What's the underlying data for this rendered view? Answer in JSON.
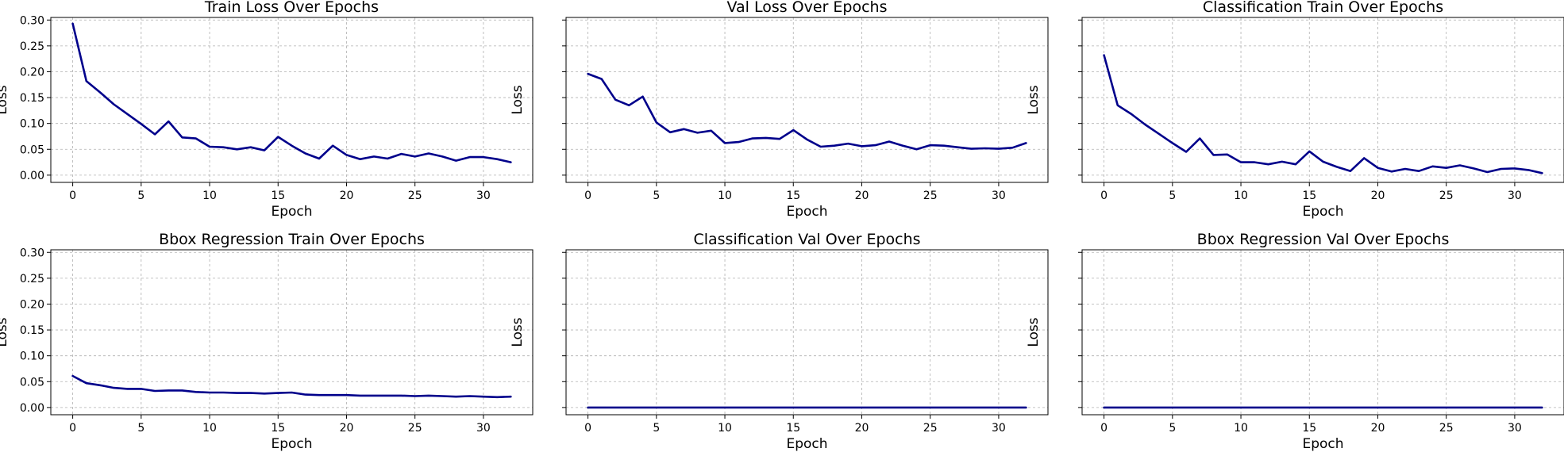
{
  "chart_data": [
    {
      "type": "line",
      "title": "Train Loss Over Epochs",
      "xlabel": "Epoch",
      "ylabel": "Loss",
      "xlim": [
        -1.6,
        33.6
      ],
      "ylim": [
        -0.014,
        0.305
      ],
      "xticks": [
        "0",
        "5",
        "10",
        "15",
        "20",
        "25",
        "30"
      ],
      "yticks": [
        "0.00",
        "0.05",
        "0.10",
        "0.15",
        "0.20",
        "0.25",
        "0.30"
      ],
      "show_ytick_labels": true,
      "grid": true,
      "color": "#00008b",
      "x": [
        0,
        1,
        2,
        3,
        4,
        5,
        6,
        7,
        8,
        9,
        10,
        11,
        12,
        13,
        14,
        15,
        16,
        17,
        18,
        19,
        20,
        21,
        22,
        23,
        24,
        25,
        26,
        27,
        28,
        29,
        30,
        31,
        32
      ],
      "y": [
        0.293,
        0.182,
        0.16,
        0.137,
        0.118,
        0.099,
        0.079,
        0.104,
        0.073,
        0.071,
        0.055,
        0.054,
        0.05,
        0.054,
        0.048,
        0.074,
        0.057,
        0.042,
        0.032,
        0.057,
        0.039,
        0.031,
        0.036,
        0.032,
        0.041,
        0.036,
        0.042,
        0.036,
        0.028,
        0.035,
        0.035,
        0.031,
        0.025
      ]
    },
    {
      "type": "line",
      "title": "Val Loss Over Epochs",
      "xlabel": "Epoch",
      "ylabel": "Loss",
      "xlim": [
        -1.6,
        33.6
      ],
      "ylim": [
        -0.014,
        0.305
      ],
      "xticks": [
        "0",
        "5",
        "10",
        "15",
        "20",
        "25",
        "30"
      ],
      "yticks": [
        "0.00",
        "0.05",
        "0.10",
        "0.15",
        "0.20",
        "0.25",
        "0.30"
      ],
      "show_ytick_labels": false,
      "grid": true,
      "color": "#00008b",
      "x": [
        0,
        1,
        2,
        3,
        4,
        5,
        6,
        7,
        8,
        9,
        10,
        11,
        12,
        13,
        14,
        15,
        16,
        17,
        18,
        19,
        20,
        21,
        22,
        23,
        24,
        25,
        26,
        27,
        28,
        29,
        30,
        31,
        32
      ],
      "y": [
        0.196,
        0.186,
        0.146,
        0.135,
        0.152,
        0.102,
        0.083,
        0.089,
        0.082,
        0.086,
        0.062,
        0.064,
        0.071,
        0.072,
        0.07,
        0.087,
        0.069,
        0.055,
        0.057,
        0.061,
        0.056,
        0.058,
        0.065,
        0.057,
        0.05,
        0.058,
        0.057,
        0.054,
        0.051,
        0.052,
        0.051,
        0.053,
        0.062
      ]
    },
    {
      "type": "line",
      "title": "Classification Train Over Epochs",
      "xlabel": "Epoch",
      "ylabel": "Loss",
      "xlim": [
        -1.6,
        33.6
      ],
      "ylim": [
        -0.014,
        0.305
      ],
      "xticks": [
        "0",
        "5",
        "10",
        "15",
        "20",
        "25",
        "30"
      ],
      "yticks": [
        "0.00",
        "0.05",
        "0.10",
        "0.15",
        "0.20",
        "0.25",
        "0.30"
      ],
      "show_ytick_labels": false,
      "grid": true,
      "color": "#00008b",
      "x": [
        0,
        1,
        2,
        3,
        4,
        5,
        6,
        7,
        8,
        9,
        10,
        11,
        12,
        13,
        14,
        15,
        16,
        17,
        18,
        19,
        20,
        21,
        22,
        23,
        24,
        25,
        26,
        27,
        28,
        29,
        30,
        31,
        32
      ],
      "y": [
        0.232,
        0.135,
        0.118,
        0.098,
        0.08,
        0.062,
        0.045,
        0.071,
        0.039,
        0.04,
        0.025,
        0.025,
        0.021,
        0.026,
        0.021,
        0.046,
        0.026,
        0.016,
        0.008,
        0.033,
        0.014,
        0.007,
        0.012,
        0.008,
        0.017,
        0.014,
        0.019,
        0.013,
        0.006,
        0.012,
        0.013,
        0.01,
        0.004
      ]
    },
    {
      "type": "line",
      "title": "Bbox Regression Train Over Epochs",
      "xlabel": "Epoch",
      "ylabel": "Loss",
      "xlim": [
        -1.6,
        33.6
      ],
      "ylim": [
        -0.014,
        0.305
      ],
      "xticks": [
        "0",
        "5",
        "10",
        "15",
        "20",
        "25",
        "30"
      ],
      "yticks": [
        "0.00",
        "0.05",
        "0.10",
        "0.15",
        "0.20",
        "0.25",
        "0.30"
      ],
      "show_ytick_labels": true,
      "grid": true,
      "color": "#00008b",
      "x": [
        0,
        1,
        2,
        3,
        4,
        5,
        6,
        7,
        8,
        9,
        10,
        11,
        12,
        13,
        14,
        15,
        16,
        17,
        18,
        19,
        20,
        21,
        22,
        23,
        24,
        25,
        26,
        27,
        28,
        29,
        30,
        31,
        32
      ],
      "y": [
        0.061,
        0.047,
        0.043,
        0.038,
        0.036,
        0.036,
        0.032,
        0.033,
        0.033,
        0.03,
        0.029,
        0.029,
        0.028,
        0.028,
        0.027,
        0.028,
        0.029,
        0.025,
        0.024,
        0.024,
        0.024,
        0.023,
        0.023,
        0.023,
        0.023,
        0.022,
        0.023,
        0.022,
        0.021,
        0.022,
        0.021,
        0.02,
        0.021
      ]
    },
    {
      "type": "line",
      "title": "Classification Val Over Epochs",
      "xlabel": "Epoch",
      "ylabel": "Loss",
      "xlim": [
        -1.6,
        33.6
      ],
      "ylim": [
        -0.014,
        0.305
      ],
      "xticks": [
        "0",
        "5",
        "10",
        "15",
        "20",
        "25",
        "30"
      ],
      "yticks": [
        "0.00",
        "0.05",
        "0.10",
        "0.15",
        "0.20",
        "0.25",
        "0.30"
      ],
      "show_ytick_labels": false,
      "grid": true,
      "color": "#00008b",
      "x": [
        0,
        1,
        2,
        3,
        4,
        5,
        6,
        7,
        8,
        9,
        10,
        11,
        12,
        13,
        14,
        15,
        16,
        17,
        18,
        19,
        20,
        21,
        22,
        23,
        24,
        25,
        26,
        27,
        28,
        29,
        30,
        31,
        32
      ],
      "y": [
        0,
        0,
        0,
        0,
        0,
        0,
        0,
        0,
        0,
        0,
        0,
        0,
        0,
        0,
        0,
        0,
        0,
        0,
        0,
        0,
        0,
        0,
        0,
        0,
        0,
        0,
        0,
        0,
        0,
        0,
        0,
        0,
        0
      ]
    },
    {
      "type": "line",
      "title": "Bbox Regression Val Over Epochs",
      "xlabel": "Epoch",
      "ylabel": "Loss",
      "xlim": [
        -1.6,
        33.6
      ],
      "ylim": [
        -0.014,
        0.305
      ],
      "xticks": [
        "0",
        "5",
        "10",
        "15",
        "20",
        "25",
        "30"
      ],
      "yticks": [
        "0.00",
        "0.05",
        "0.10",
        "0.15",
        "0.20",
        "0.25",
        "0.30"
      ],
      "show_ytick_labels": false,
      "grid": true,
      "color": "#00008b",
      "x": [
        0,
        1,
        2,
        3,
        4,
        5,
        6,
        7,
        8,
        9,
        10,
        11,
        12,
        13,
        14,
        15,
        16,
        17,
        18,
        19,
        20,
        21,
        22,
        23,
        24,
        25,
        26,
        27,
        28,
        29,
        30,
        31,
        32
      ],
      "y": [
        0,
        0,
        0,
        0,
        0,
        0,
        0,
        0,
        0,
        0,
        0,
        0,
        0,
        0,
        0,
        0,
        0,
        0,
        0,
        0,
        0,
        0,
        0,
        0,
        0,
        0,
        0,
        0,
        0,
        0,
        0,
        0,
        0
      ]
    }
  ]
}
